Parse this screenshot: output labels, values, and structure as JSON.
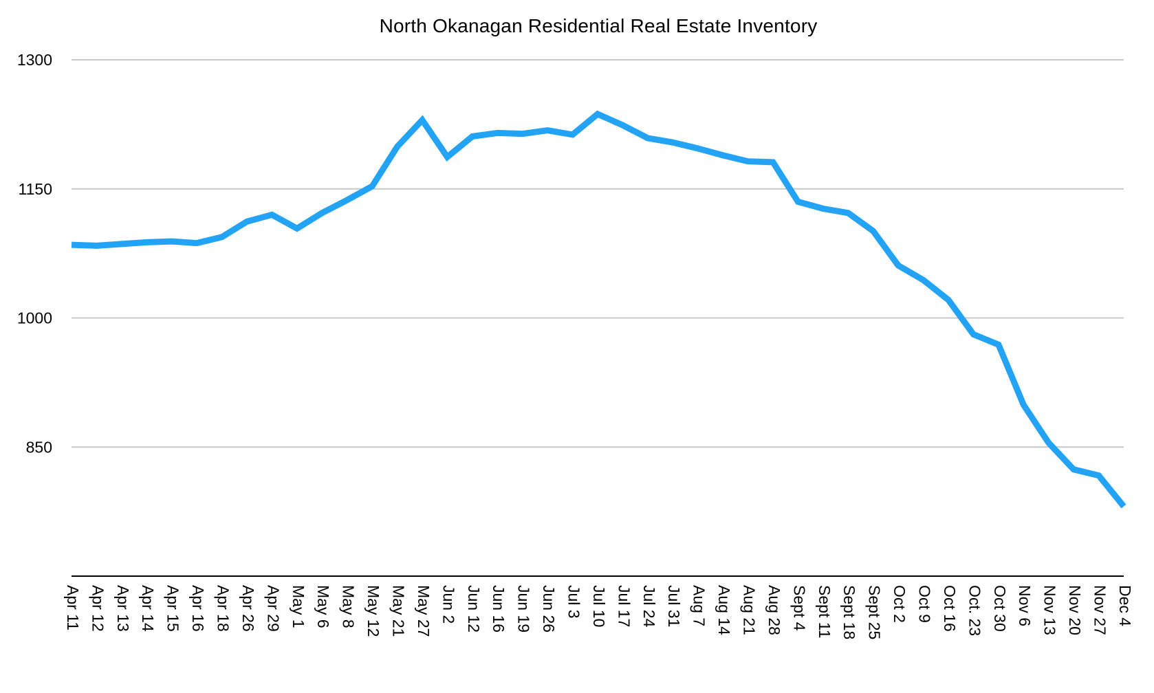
{
  "chart_data": {
    "type": "line",
    "title": "North Okanagan Residential Real Estate Inventory",
    "xlabel": "",
    "ylabel": "",
    "ylim": [
      700,
      1300
    ],
    "yticks": [
      850,
      1000,
      1150,
      1300
    ],
    "grid": true,
    "legend": "none",
    "categories": [
      "Apr 11",
      "Apr 12",
      "Apr 13",
      "Apr 14",
      "Apr 15",
      "Apr 16",
      "Apr 18",
      "Apr 26",
      "Apr 29",
      "May 1",
      "May 6",
      "May 8",
      "May 12",
      "May 21",
      "May 27",
      "Jun 2",
      "Jun 12",
      "Jun 16",
      "Jun 19",
      "Jun 26",
      "Jul 3",
      "Jul 10",
      "Jul 17",
      "Jul 24",
      "Jul 31",
      "Aug 7",
      "Aug 14",
      "Aug 21",
      "Aug 28",
      "Sept 4",
      "Sept 11",
      "Sept 18",
      "Sept  25",
      "Oct 2",
      "Oct 9",
      "Oct 16",
      "Oct. 23",
      "Oct 30",
      "Nov 6",
      "Nov 13",
      "Nov 20",
      "Nov 27",
      "Dec 4"
    ],
    "series": [
      {
        "color": "#22a3f5",
        "values": [
          1085,
          1084,
          1086,
          1088,
          1089,
          1087,
          1094,
          1112,
          1120,
          1104,
          1122,
          1137,
          1153,
          1199,
          1230,
          1187,
          1211,
          1215,
          1214,
          1218,
          1213,
          1237,
          1224,
          1209,
          1204,
          1197,
          1189,
          1182,
          1181,
          1135,
          1127,
          1122,
          1101,
          1061,
          1044,
          1021,
          981,
          969,
          899,
          855,
          824,
          817,
          781
        ]
      }
    ]
  }
}
